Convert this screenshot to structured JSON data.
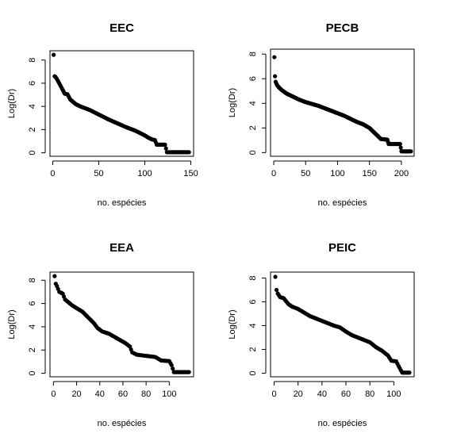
{
  "chart_data": [
    {
      "type": "scatter",
      "title": "EEC",
      "xlabel": "no. espécies",
      "ylabel": "Log(Dr)",
      "xlim": [
        -3,
        153
      ],
      "ylim": [
        -0.3,
        8.8
      ],
      "xticks": [
        0,
        50,
        100,
        150
      ],
      "yticks": [
        0,
        2,
        4,
        6,
        8
      ],
      "n": 148,
      "grid": false,
      "legend": "none",
      "profile": [
        [
          1,
          8.45
        ],
        [
          2,
          6.6
        ],
        [
          3,
          6.55
        ],
        [
          5,
          6.3
        ],
        [
          7,
          6.0
        ],
        [
          9,
          5.7
        ],
        [
          11,
          5.4
        ],
        [
          13,
          5.1
        ],
        [
          16,
          5.05
        ],
        [
          19,
          4.6
        ],
        [
          22,
          4.4
        ],
        [
          25,
          4.2
        ],
        [
          30,
          4.0
        ],
        [
          40,
          3.7
        ],
        [
          50,
          3.3
        ],
        [
          60,
          2.9
        ],
        [
          70,
          2.55
        ],
        [
          80,
          2.2
        ],
        [
          90,
          1.9
        ],
        [
          100,
          1.5
        ],
        [
          104,
          1.3
        ],
        [
          108,
          1.15
        ],
        [
          111,
          1.1
        ],
        [
          113,
          0.7
        ],
        [
          122,
          0.7
        ],
        [
          124,
          0.05
        ],
        [
          148,
          0.05
        ]
      ]
    },
    {
      "type": "scatter",
      "title": "PECB",
      "xlabel": "no. espécies",
      "ylabel": "Log(Dr)",
      "xlim": [
        -5,
        220
      ],
      "ylim": [
        -0.3,
        8.4
      ],
      "xticks": [
        0,
        50,
        100,
        150,
        200
      ],
      "yticks": [
        0,
        2,
        4,
        6,
        8
      ],
      "n": 215,
      "grid": false,
      "legend": "none",
      "profile": [
        [
          1,
          7.75
        ],
        [
          2,
          6.2
        ],
        [
          3,
          5.75
        ],
        [
          5,
          5.5
        ],
        [
          8,
          5.3
        ],
        [
          12,
          5.1
        ],
        [
          20,
          4.8
        ],
        [
          30,
          4.55
        ],
        [
          40,
          4.3
        ],
        [
          50,
          4.1
        ],
        [
          60,
          3.95
        ],
        [
          70,
          3.8
        ],
        [
          80,
          3.6
        ],
        [
          90,
          3.4
        ],
        [
          100,
          3.2
        ],
        [
          110,
          3.0
        ],
        [
          120,
          2.75
        ],
        [
          130,
          2.5
        ],
        [
          140,
          2.3
        ],
        [
          150,
          2.0
        ],
        [
          160,
          1.5
        ],
        [
          168,
          1.1
        ],
        [
          178,
          1.05
        ],
        [
          180,
          0.7
        ],
        [
          198,
          0.7
        ],
        [
          200,
          0.1
        ],
        [
          215,
          0.1
        ]
      ]
    },
    {
      "type": "scatter",
      "title": "EEA",
      "xlabel": "no. espécies",
      "ylabel": "Log(Dr)",
      "xlim": [
        -3,
        121
      ],
      "ylim": [
        -0.3,
        8.7
      ],
      "xticks": [
        0,
        20,
        40,
        60,
        80,
        100
      ],
      "yticks": [
        0,
        2,
        4,
        6,
        8
      ],
      "n": 117,
      "grid": false,
      "legend": "none",
      "profile": [
        [
          1,
          8.35
        ],
        [
          2,
          7.7
        ],
        [
          3,
          7.5
        ],
        [
          5,
          7.0
        ],
        [
          8,
          6.85
        ],
        [
          10,
          6.35
        ],
        [
          13,
          6.1
        ],
        [
          16,
          5.85
        ],
        [
          20,
          5.6
        ],
        [
          25,
          5.3
        ],
        [
          30,
          4.8
        ],
        [
          35,
          4.3
        ],
        [
          38,
          3.9
        ],
        [
          42,
          3.6
        ],
        [
          48,
          3.4
        ],
        [
          55,
          3.0
        ],
        [
          62,
          2.6
        ],
        [
          66,
          2.3
        ],
        [
          68,
          1.8
        ],
        [
          72,
          1.6
        ],
        [
          80,
          1.5
        ],
        [
          88,
          1.4
        ],
        [
          93,
          1.1
        ],
        [
          100,
          1.05
        ],
        [
          102,
          0.7
        ],
        [
          104,
          0.1
        ],
        [
          117,
          0.1
        ]
      ]
    },
    {
      "type": "scatter",
      "title": "PEIC",
      "xlabel": "no. espécies",
      "ylabel": "Log(Dr)",
      "xlim": [
        -3,
        117
      ],
      "ylim": [
        -0.3,
        8.5
      ],
      "xticks": [
        0,
        20,
        40,
        60,
        80,
        100
      ],
      "yticks": [
        0,
        2,
        4,
        6,
        8
      ],
      "n": 113,
      "grid": false,
      "legend": "none",
      "profile": [
        [
          1,
          8.1
        ],
        [
          2,
          7.0
        ],
        [
          3,
          6.7
        ],
        [
          5,
          6.4
        ],
        [
          8,
          6.3
        ],
        [
          12,
          5.8
        ],
        [
          15,
          5.6
        ],
        [
          20,
          5.4
        ],
        [
          25,
          5.1
        ],
        [
          30,
          4.8
        ],
        [
          35,
          4.6
        ],
        [
          40,
          4.4
        ],
        [
          45,
          4.2
        ],
        [
          50,
          4.0
        ],
        [
          55,
          3.85
        ],
        [
          60,
          3.5
        ],
        [
          65,
          3.2
        ],
        [
          70,
          3.0
        ],
        [
          75,
          2.8
        ],
        [
          80,
          2.6
        ],
        [
          85,
          2.2
        ],
        [
          90,
          1.9
        ],
        [
          95,
          1.5
        ],
        [
          98,
          1.05
        ],
        [
          102,
          1.0
        ],
        [
          104,
          0.6
        ],
        [
          107,
          0.05
        ],
        [
          113,
          0.05
        ]
      ]
    }
  ]
}
